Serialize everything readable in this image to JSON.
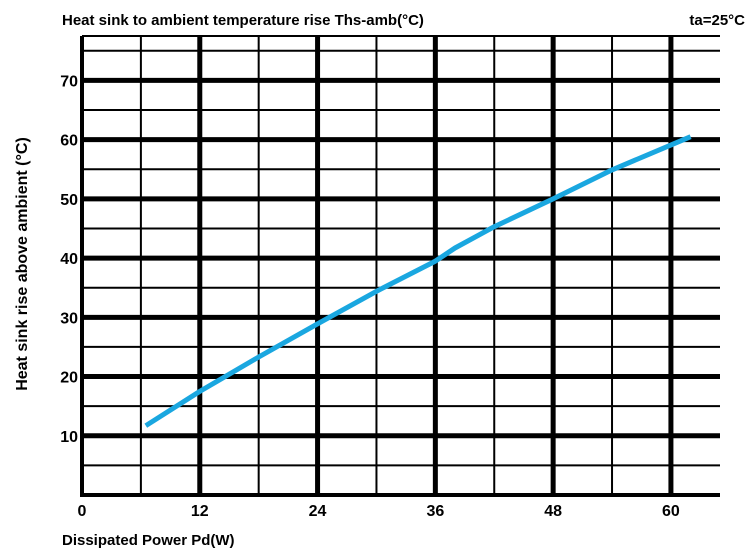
{
  "chart_data": {
    "type": "line",
    "title": "Heat sink to ambient temperature rise Ths-amb(°C)",
    "annotation": "ta=25°C",
    "xlabel": "Dissipated Power Pd(W)",
    "ylabel": "Heat sink rise above ambient (°C)",
    "xlim": [
      0,
      65
    ],
    "ylim": [
      0,
      77.5
    ],
    "x_ticks": [
      "0",
      "12",
      "24",
      "36",
      "48",
      "60"
    ],
    "y_ticks": [
      "10",
      "20",
      "30",
      "40",
      "50",
      "60",
      "70"
    ],
    "grid": true,
    "series": [
      {
        "line_color": "#1aa7e0",
        "x": [
          6.5,
          12,
          18,
          24,
          30,
          36,
          38,
          42,
          48,
          54,
          62
        ],
        "y": [
          11.7,
          17.5,
          23.3,
          28.9,
          34.4,
          39.5,
          41.7,
          45.3,
          50.0,
          54.9,
          60.5
        ]
      }
    ]
  }
}
